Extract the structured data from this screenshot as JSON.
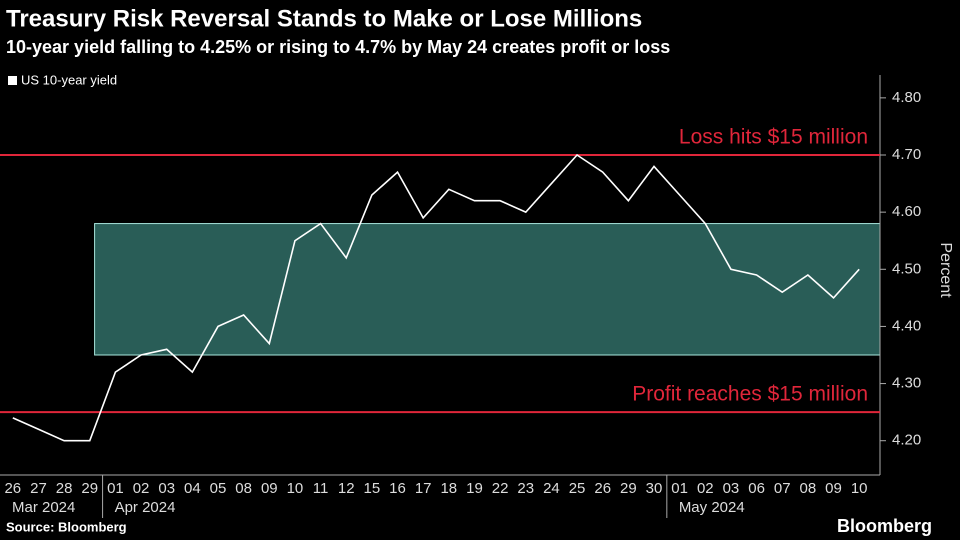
{
  "chart_data": {
    "type": "line",
    "title": "Treasury Risk Reversal Stands to Make or Lose Millions",
    "subtitle": "10-year yield falling to 4.25% or rising to 4.7% by May 24 creates profit or loss",
    "source": "Source: Bloomberg",
    "brand": "Bloomberg",
    "y_axis_label": "Percent",
    "categories": [
      "26",
      "27",
      "28",
      "29",
      "01",
      "02",
      "03",
      "04",
      "05",
      "08",
      "09",
      "10",
      "11",
      "12",
      "15",
      "16",
      "17",
      "18",
      "19",
      "22",
      "23",
      "24",
      "25",
      "26",
      "29",
      "30",
      "01",
      "02",
      "03",
      "06",
      "07",
      "08",
      "09",
      "10"
    ],
    "months": [
      "Mar 2024",
      "Apr 2024",
      "May 2024"
    ],
    "series": [
      {
        "name": "US 10-year yield",
        "color": "#ffffff",
        "values": [
          4.24,
          4.22,
          4.2,
          4.2,
          4.32,
          4.35,
          4.36,
          4.32,
          4.4,
          4.42,
          4.37,
          4.55,
          4.58,
          4.52,
          4.63,
          4.67,
          4.59,
          4.64,
          4.62,
          4.62,
          4.6,
          4.65,
          4.7,
          4.67,
          4.62,
          4.68,
          4.63,
          4.58,
          4.5,
          4.49,
          4.46,
          4.49,
          4.45,
          4.5
        ]
      }
    ],
    "reference_lines": [
      {
        "value": 4.7,
        "label": "Loss hits $15 million",
        "color": "#e0263a"
      },
      {
        "value": 4.25,
        "label": "Profit reaches $15 million",
        "color": "#e0263a"
      }
    ],
    "band": {
      "from": 4.35,
      "to": 4.58,
      "color": "#3f8f86"
    },
    "ylim": [
      4.14,
      4.84
    ],
    "yticks": [
      {
        "value": 4.2,
        "label": "4.20"
      },
      {
        "value": 4.3,
        "label": "4.30"
      },
      {
        "value": 4.4,
        "label": "4.40"
      },
      {
        "value": 4.5,
        "label": "4.50"
      },
      {
        "value": 4.6,
        "label": "4.60"
      },
      {
        "value": 4.7,
        "label": "4.70"
      },
      {
        "value": 4.8,
        "label": "4.80"
      }
    ]
  }
}
